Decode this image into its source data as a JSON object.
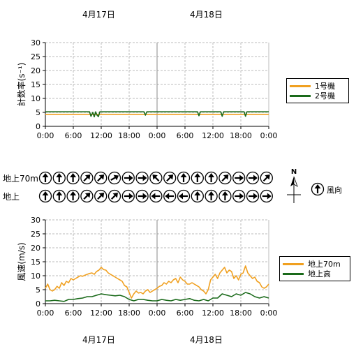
{
  "dates": {
    "top": [
      "4月17日",
      "4月18日"
    ],
    "bottom": [
      "4月17日",
      "4月18日"
    ]
  },
  "x_tick_labels": [
    "0:00",
    "6:00",
    "12:00",
    "18:00",
    "0:00",
    "6:00",
    "12:00",
    "18:00",
    "0:00"
  ],
  "wind_rows": {
    "upper_label": "地上70m",
    "lower_label": "地上"
  },
  "compass": {
    "north_label": "N",
    "wind_legend_label": "風向"
  },
  "colors": {
    "orange": "#f0a020",
    "green": "#1a6a1a",
    "grid": "#bbbbbb"
  },
  "chart_data": [
    {
      "type": "line",
      "title": "",
      "ylabel": "計数率(s⁻¹)",
      "xlabel": "",
      "ylim": [
        0,
        30
      ],
      "yticks": [
        0,
        5,
        10,
        15,
        20,
        25,
        30
      ],
      "x_range_hours": [
        0,
        48
      ],
      "grid": true,
      "legend_position": "right",
      "series": [
        {
          "name": "1号機",
          "color": "#f0a020",
          "x": [
            0,
            48
          ],
          "y": [
            4.3,
            4.3
          ]
        },
        {
          "name": "2号機",
          "color": "#1a6a1a",
          "x": [
            0,
            9.5,
            9.8,
            10.2,
            10.5,
            10.8,
            11.1,
            11.4,
            11.7,
            21.2,
            21.5,
            21.8,
            32.7,
            33.0,
            33.3,
            37.7,
            38.0,
            38.3,
            42.7,
            43.0,
            43.3,
            48
          ],
          "y": [
            5.2,
            5.2,
            3.6,
            5.0,
            3.4,
            5.2,
            4.0,
            3.5,
            5.2,
            5.2,
            4.0,
            5.2,
            5.2,
            3.8,
            5.2,
            5.2,
            3.6,
            5.2,
            5.2,
            3.6,
            5.2,
            5.2
          ]
        }
      ]
    },
    {
      "type": "line",
      "title": "",
      "ylabel": "風速(m/s)",
      "xlabel": "",
      "ylim": [
        0,
        30
      ],
      "yticks": [
        0,
        5,
        10,
        15,
        20,
        25,
        30
      ],
      "x_range_hours": [
        0,
        48
      ],
      "grid": true,
      "legend_position": "right",
      "series": [
        {
          "name": "地上70m",
          "color": "#f0a020",
          "x": [
            0,
            0.5,
            1,
            1.5,
            2,
            2.5,
            3,
            3.5,
            4,
            4.5,
            5,
            5.5,
            6,
            6.5,
            7,
            7.5,
            8,
            8.5,
            9,
            9.5,
            10,
            10.5,
            11,
            11.5,
            12,
            12.5,
            13,
            13.5,
            14,
            14.5,
            15,
            15.5,
            16,
            16.5,
            17,
            17.5,
            18,
            18.5,
            19,
            19.5,
            20,
            20.5,
            21,
            21.5,
            22,
            22.5,
            23,
            23.5,
            24,
            24.5,
            25,
            25.5,
            26,
            26.5,
            27,
            27.5,
            28,
            28.5,
            29,
            29.5,
            30,
            30.5,
            31,
            31.5,
            32,
            32.5,
            33,
            33.5,
            34,
            34.5,
            35,
            35.5,
            36,
            36.5,
            37,
            37.5,
            38,
            38.5,
            39,
            39.5,
            40,
            40.5,
            41,
            41.5,
            42,
            42.5,
            43,
            43.5,
            44,
            44.5,
            45,
            45.5,
            46,
            46.5,
            47,
            47.5,
            48
          ],
          "y": [
            5.5,
            7.0,
            5.0,
            4.5,
            5.0,
            6.2,
            5.5,
            7.5,
            6.5,
            8.0,
            7.5,
            9.0,
            8.5,
            9.0,
            9.5,
            10.0,
            9.8,
            10.2,
            10.5,
            10.8,
            11.0,
            10.5,
            11.5,
            12.0,
            13.0,
            12.2,
            12.0,
            11.0,
            10.5,
            10.0,
            9.5,
            9.0,
            8.5,
            8.0,
            6.5,
            6.0,
            4.0,
            2.0,
            3.5,
            4.5,
            3.8,
            4.0,
            3.5,
            4.5,
            5.0,
            4.0,
            4.5,
            5.0,
            5.5,
            6.2,
            6.5,
            7.5,
            7.0,
            8.0,
            7.5,
            8.5,
            9.0,
            7.5,
            9.5,
            8.5,
            8.0,
            7.0,
            7.0,
            7.5,
            7.0,
            6.5,
            6.0,
            5.0,
            4.5,
            3.5,
            5.0,
            8.5,
            9.5,
            10.5,
            9.0,
            11.0,
            12.0,
            13.0,
            11.0,
            12.0,
            11.5,
            9.0,
            10.0,
            8.5,
            10.5,
            11.0,
            13.5,
            11.0,
            10.0,
            9.0,
            9.5,
            8.0,
            7.5,
            6.0,
            5.5,
            6.0,
            7.0
          ],
          "note_ignore": ""
        },
        {
          "name": "地上高",
          "color": "#1a6a1a",
          "x": [
            0,
            1,
            2,
            3,
            4,
            5,
            6,
            7,
            8,
            9,
            10,
            11,
            12,
            13,
            14,
            15,
            16,
            17,
            18,
            19,
            20,
            21,
            22,
            23,
            24,
            25,
            26,
            27,
            28,
            29,
            30,
            31,
            32,
            33,
            34,
            35,
            36,
            37,
            38,
            39,
            40,
            41,
            42,
            43,
            44,
            45,
            46,
            47,
            48
          ],
          "y": [
            1.0,
            1.0,
            1.2,
            1.0,
            0.8,
            1.5,
            1.5,
            1.8,
            2.0,
            2.5,
            2.5,
            3.0,
            3.5,
            3.2,
            3.0,
            2.8,
            3.0,
            2.5,
            1.5,
            1.0,
            1.5,
            1.5,
            1.2,
            1.0,
            1.0,
            1.5,
            1.2,
            1.0,
            1.5,
            1.2,
            1.5,
            1.8,
            1.2,
            1.0,
            1.5,
            1.0,
            2.0,
            2.0,
            3.5,
            3.0,
            2.5,
            3.5,
            3.0,
            4.0,
            3.5,
            2.5,
            2.0,
            2.5,
            2.0
          ]
        }
      ]
    }
  ],
  "wind_directions": {
    "upper_deg": [
      0,
      0,
      0,
      45,
      45,
      60,
      90,
      90,
      315,
      45,
      0,
      0,
      0,
      45,
      90,
      90,
      45
    ],
    "lower_deg": [
      0,
      0,
      0,
      45,
      45,
      45,
      90,
      90,
      270,
      270,
      270,
      0,
      0,
      0,
      90,
      90,
      90
    ]
  }
}
